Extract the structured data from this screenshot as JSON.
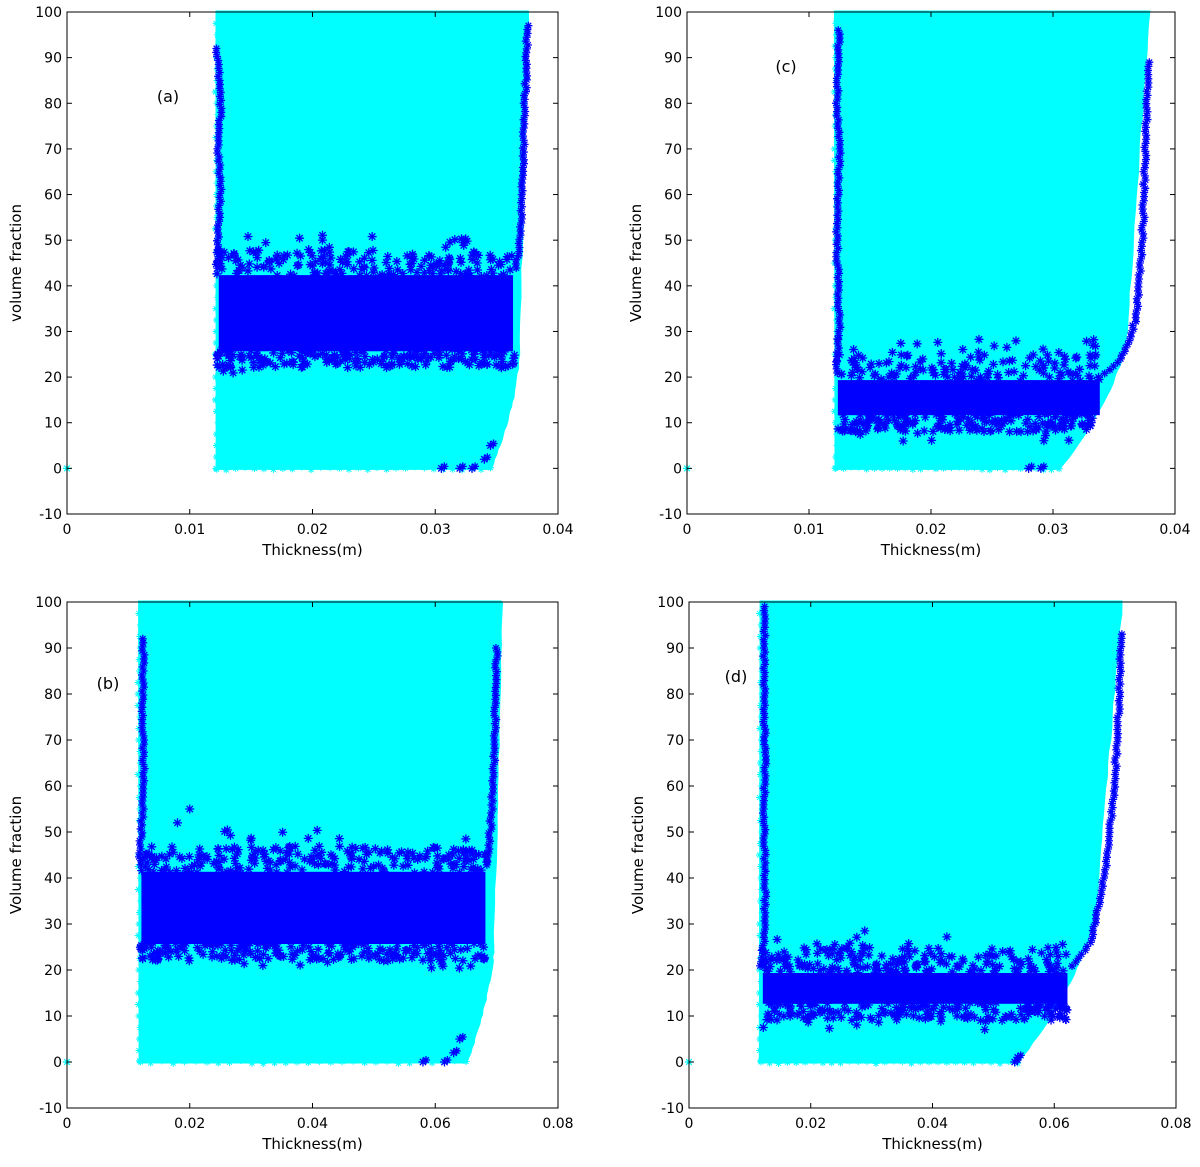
{
  "colors": {
    "region": "#00FFFF",
    "front": "#0000FF",
    "axis": "#000000"
  },
  "chart_data": [
    {
      "type": "scatter",
      "panel_label": "(a)",
      "xlabel": "Thickness(m)",
      "ylabel": "volume fraction",
      "xlim": [
        0,
        0.04
      ],
      "ylim": [
        -10,
        100
      ],
      "xticks": [
        0,
        0.01,
        0.02,
        0.03,
        0.04
      ],
      "xtick_labels": [
        "0",
        "0.01",
        "0.02",
        "0.03",
        "0.04"
      ],
      "yticks": [
        -10,
        0,
        10,
        20,
        30,
        40,
        50,
        60,
        70,
        80,
        90,
        100
      ],
      "ytick_labels": [
        "-10",
        "0",
        "10",
        "20",
        "30",
        "40",
        "50",
        "60",
        "70",
        "80",
        "90",
        "100"
      ],
      "outlier": [
        0,
        0
      ],
      "region": {
        "x_left": 0.0122,
        "x_right_top": 0.0375,
        "x_right_bottom": 0.0345,
        "bend_y": 25
      },
      "front_band": {
        "x_from": 0.0122,
        "x_to": 0.0365,
        "y_low": 25,
        "y_high": 43
      },
      "front_left_edge": [
        [
          0.0122,
          92
        ],
        [
          0.0124,
          85
        ],
        [
          0.0125,
          78
        ],
        [
          0.0123,
          70
        ],
        [
          0.0125,
          62
        ],
        [
          0.0124,
          55
        ]
      ],
      "front_right_edge": [
        [
          0.0375,
          97
        ],
        [
          0.0374,
          86
        ],
        [
          0.0373,
          80
        ],
        [
          0.0372,
          71
        ],
        [
          0.0371,
          60
        ],
        [
          0.037,
          52
        ]
      ],
      "front_bottom": [
        [
          0.0305,
          0
        ],
        [
          0.032,
          0
        ],
        [
          0.033,
          0
        ],
        [
          0.034,
          2
        ],
        [
          0.0345,
          5
        ]
      ]
    },
    {
      "type": "scatter",
      "panel_label": "(c)",
      "xlabel": "Thickness(m)",
      "ylabel": "Volume fraction",
      "xlim": [
        0,
        0.04
      ],
      "ylim": [
        -10,
        100
      ],
      "xticks": [
        0,
        0.01,
        0.02,
        0.03,
        0.04
      ],
      "xtick_labels": [
        "0",
        "0.01",
        "0.02",
        "0.03",
        "0.04"
      ],
      "yticks": [
        -10,
        0,
        10,
        20,
        30,
        40,
        50,
        60,
        70,
        80,
        90,
        100
      ],
      "ytick_labels": [
        "-10",
        "0",
        "10",
        "20",
        "30",
        "40",
        "50",
        "60",
        "70",
        "80",
        "90",
        "100"
      ],
      "outlier": [
        0,
        0
      ],
      "region": {
        "x_left": 0.0122,
        "x_right_top": 0.0378,
        "x_right_bottom": 0.0305,
        "bend_y": 30
      },
      "front_band": {
        "x_from": 0.0122,
        "x_to": 0.034,
        "y_low": 11,
        "y_high": 20
      },
      "front_left_edge": [
        [
          0.0125,
          96
        ],
        [
          0.0124,
          90
        ],
        [
          0.0123,
          80
        ],
        [
          0.0125,
          70
        ],
        [
          0.0124,
          60
        ],
        [
          0.0123,
          50
        ],
        [
          0.0124,
          40
        ],
        [
          0.0125,
          30
        ]
      ],
      "front_right_edge": [
        [
          0.0378,
          89
        ],
        [
          0.0377,
          79
        ],
        [
          0.0376,
          73
        ],
        [
          0.0375,
          65
        ],
        [
          0.0374,
          55
        ],
        [
          0.0372,
          45
        ],
        [
          0.037,
          38
        ],
        [
          0.0368,
          33
        ],
        [
          0.0362,
          28
        ],
        [
          0.0355,
          24
        ]
      ],
      "front_bottom": [
        [
          0.028,
          0
        ],
        [
          0.029,
          0
        ]
      ]
    },
    {
      "type": "scatter",
      "panel_label": "(b)",
      "xlabel": "Thickness(m)",
      "ylabel": "Volume fraction",
      "xlim": [
        0,
        0.08
      ],
      "ylim": [
        -10,
        100
      ],
      "xticks": [
        0,
        0.02,
        0.04,
        0.06,
        0.08
      ],
      "xtick_labels": [
        "0",
        "0.02",
        "0.04",
        "0.06",
        "0.08"
      ],
      "yticks": [
        -10,
        0,
        10,
        20,
        30,
        40,
        50,
        60,
        70,
        80,
        90,
        100
      ],
      "ytick_labels": [
        "-10",
        "0",
        "10",
        "20",
        "30",
        "40",
        "50",
        "60",
        "70",
        "80",
        "90",
        "100"
      ],
      "outlier": [
        0,
        0
      ],
      "region": {
        "x_left": 0.0118,
        "x_right_top": 0.0708,
        "x_right_bottom": 0.065,
        "bend_y": 25
      },
      "front_band": {
        "x_from": 0.0118,
        "x_to": 0.0685,
        "y_low": 25,
        "y_high": 42
      },
      "front_left_edge": [
        [
          0.0125,
          92
        ],
        [
          0.0124,
          85
        ],
        [
          0.0123,
          78
        ],
        [
          0.0124,
          70
        ],
        [
          0.0125,
          62
        ],
        [
          0.0123,
          55
        ],
        [
          0.02,
          55
        ],
        [
          0.018,
          52
        ]
      ],
      "front_right_edge": [
        [
          0.07,
          90
        ],
        [
          0.0699,
          84
        ],
        [
          0.0698,
          78
        ],
        [
          0.0697,
          70
        ],
        [
          0.0695,
          62
        ],
        [
          0.0692,
          55
        ],
        [
          0.0688,
          48
        ]
      ],
      "front_bottom": [
        [
          0.058,
          0
        ],
        [
          0.0615,
          0
        ],
        [
          0.063,
          2
        ],
        [
          0.064,
          5
        ]
      ]
    },
    {
      "type": "scatter",
      "panel_label": "(d)",
      "xlabel": "Thickness(m)",
      "ylabel": "Volume fraction",
      "xlim": [
        0,
        0.08
      ],
      "ylim": [
        -10,
        100
      ],
      "xticks": [
        0,
        0.02,
        0.04,
        0.06,
        0.08
      ],
      "xtick_labels": [
        "0",
        "0.02",
        "0.04",
        "0.06",
        "0.08"
      ],
      "yticks": [
        -10,
        0,
        10,
        20,
        30,
        40,
        50,
        60,
        70,
        80,
        90,
        100
      ],
      "ytick_labels": [
        "-10",
        "0",
        "10",
        "20",
        "30",
        "40",
        "50",
        "60",
        "70",
        "80",
        "90",
        "100"
      ],
      "outlier": [
        0,
        0
      ],
      "region": {
        "x_left": 0.0118,
        "x_right_top": 0.071,
        "x_right_bottom": 0.054,
        "bend_y": 35
      },
      "front_band": {
        "x_from": 0.0118,
        "x_to": 0.0625,
        "y_low": 12,
        "y_high": 20
      },
      "front_left_edge": [
        [
          0.0125,
          99
        ],
        [
          0.0124,
          90
        ],
        [
          0.0123,
          82
        ],
        [
          0.0124,
          74
        ],
        [
          0.0125,
          64
        ],
        [
          0.0123,
          55
        ],
        [
          0.0124,
          46
        ],
        [
          0.0125,
          36
        ],
        [
          0.0124,
          28
        ]
      ],
      "front_right_edge": [
        [
          0.071,
          93
        ],
        [
          0.0708,
          84
        ],
        [
          0.0705,
          74
        ],
        [
          0.0702,
          67
        ],
        [
          0.0698,
          58
        ],
        [
          0.069,
          49
        ],
        [
          0.0682,
          40
        ],
        [
          0.067,
          32
        ],
        [
          0.066,
          26
        ]
      ],
      "front_bottom": [
        [
          0.0535,
          0
        ],
        [
          0.054,
          1
        ]
      ]
    }
  ]
}
